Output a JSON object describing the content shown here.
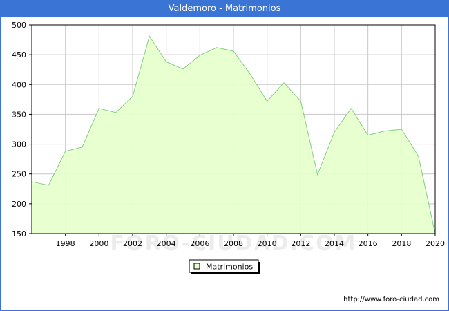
{
  "window": {
    "title": "Valdemoro - Matrimonios"
  },
  "watermark": "FORO-CIUDAD.COM",
  "footer": {
    "url": "http://www.foro-ciudad.com"
  },
  "colors": {
    "titlebar": "#3a75d6",
    "fill": "#e6ffcc",
    "line": "#7fcf7f",
    "grid": "#c8c8c8"
  },
  "chart_data": {
    "type": "area",
    "title": "Valdemoro - Matrimonios",
    "xlabel": "",
    "ylabel": "",
    "x": [
      1996,
      1997,
      1998,
      1999,
      2000,
      2001,
      2002,
      2003,
      2004,
      2005,
      2006,
      2007,
      2008,
      2009,
      2010,
      2011,
      2012,
      2013,
      2014,
      2015,
      2016,
      2017,
      2018,
      2019,
      2020
    ],
    "series": [
      {
        "name": "Matrimonios",
        "values": [
          237,
          231,
          288,
          295,
          360,
          353,
          380,
          481,
          438,
          426,
          449,
          462,
          456,
          417,
          372,
          403,
          372,
          249,
          320,
          360,
          315,
          322,
          325,
          280,
          150
        ]
      }
    ],
    "xlim": [
      1996,
      2020
    ],
    "ylim": [
      150,
      500
    ],
    "xticks": [
      "1998",
      "2000",
      "2002",
      "2004",
      "2006",
      "2008",
      "2010",
      "2012",
      "2014",
      "2016",
      "2018",
      "2020"
    ],
    "yticks": [
      "150",
      "200",
      "250",
      "300",
      "350",
      "400",
      "450",
      "500"
    ],
    "grid": true,
    "legend": {
      "position": "bottom-center",
      "label": "Matrimonios"
    }
  }
}
